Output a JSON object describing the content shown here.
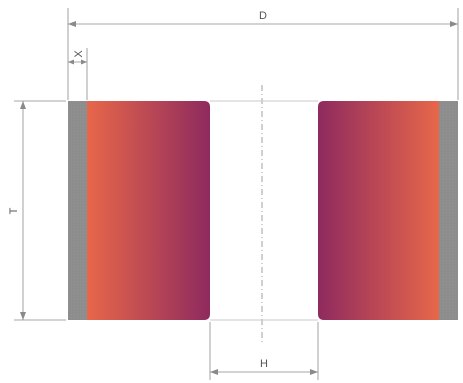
{
  "diagram": {
    "labels": {
      "D": "D",
      "X": "X",
      "T": "T",
      "H": "H"
    },
    "colors": {
      "abrasive_edge": "#e8674a",
      "abrasive_inner": "#8e2a5e",
      "rim": "#8f8f8f",
      "dimension_line": "#8a8a8a",
      "outline": "#c8c8c8"
    }
  }
}
